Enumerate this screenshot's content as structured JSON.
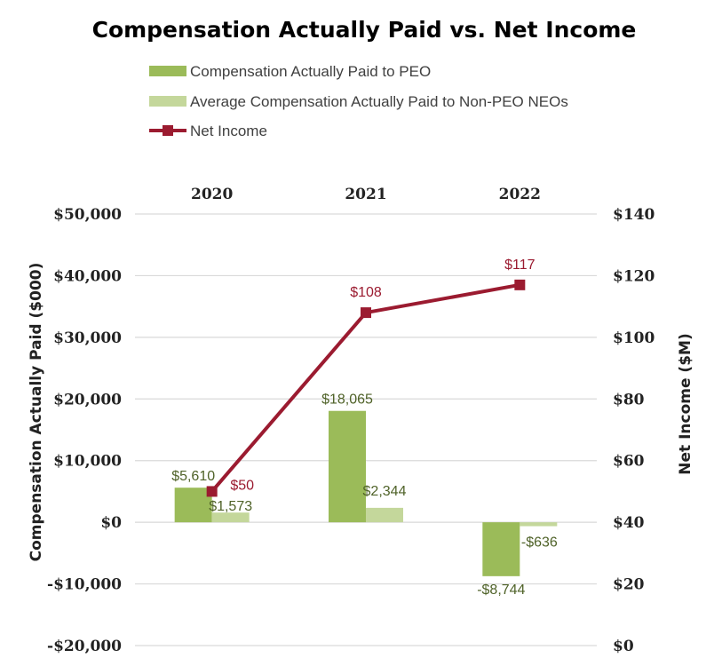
{
  "chart_data": {
    "type": "bar",
    "title": "Compensation Actually Paid vs. Net Income",
    "categories": [
      "2020",
      "2021",
      "2022"
    ],
    "series": [
      {
        "name": "Compensation Actually Paid to PEO",
        "kind": "bar",
        "axis": "left",
        "color": "#9bbb59",
        "values": [
          5610,
          18065,
          -8744
        ],
        "labels": [
          "$5,610",
          "$18,065",
          "-$8,744"
        ]
      },
      {
        "name": "Average Compensation Actually Paid to Non-PEO NEOs",
        "kind": "bar",
        "axis": "left",
        "color": "#c4d79b",
        "values": [
          1573,
          2344,
          -636
        ],
        "labels": [
          "$1,573",
          "$2,344",
          "-$636"
        ]
      },
      {
        "name": "Net Income",
        "kind": "line",
        "axis": "right",
        "color": "#9b1b30",
        "values": [
          50,
          108,
          117
        ],
        "labels": [
          "$50",
          "$108",
          "$117"
        ]
      }
    ],
    "y_left": {
      "label": "Compensation Actually Paid ($000)",
      "min": -20000,
      "max": 50000,
      "ticks": [
        50000,
        40000,
        30000,
        20000,
        10000,
        0,
        -10000,
        -20000
      ],
      "tick_labels": [
        "$50,000",
        "$40,000",
        "$30,000",
        "$20,000",
        "$10,000",
        "$0",
        "-$10,000",
        "-$20,000"
      ]
    },
    "y_right": {
      "label": "Net Income ($M)",
      "min": 0,
      "max": 140,
      "ticks": [
        140,
        120,
        100,
        80,
        60,
        40,
        20,
        0
      ],
      "tick_labels": [
        "$140",
        "$120",
        "$100",
        "$80",
        "$60",
        "$40",
        "$20",
        "$0"
      ]
    },
    "grid": true,
    "legend_position": "top-left",
    "label_color_bars": "#4f6228"
  }
}
